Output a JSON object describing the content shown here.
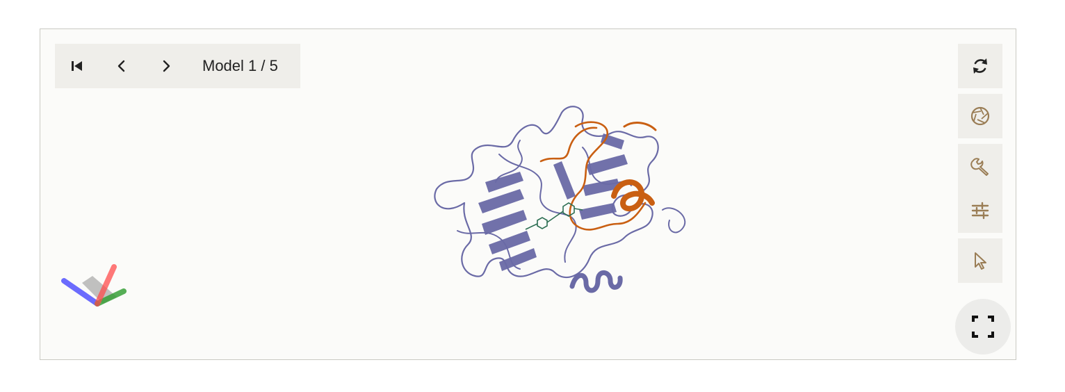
{
  "toolbar": {
    "model_label": "Model 1 / 5",
    "first_icon": "skip-to-first-icon",
    "prev_icon": "chevron-left-icon",
    "next_icon": "chevron-right-icon"
  },
  "side_controls": [
    {
      "name": "reset-view-button",
      "icon": "refresh-icon"
    },
    {
      "name": "screenshot-button",
      "icon": "camera-shutter-icon"
    },
    {
      "name": "tools-button",
      "icon": "wrench-icon"
    },
    {
      "name": "settings-button",
      "icon": "sliders-icon"
    },
    {
      "name": "selection-mode-button",
      "icon": "cursor-icon"
    },
    {
      "name": "fullscreen-button",
      "icon": "expand-icon"
    }
  ],
  "colors": {
    "protein_chain": "#6a6aa6",
    "peptide_chain": "#c95f12",
    "ligand": "#2c6e52",
    "icon_accent": "#9a7d55",
    "x_axis": "#ff4d4d",
    "y_axis": "#2e9c2e",
    "z_axis": "#3b3bff"
  }
}
